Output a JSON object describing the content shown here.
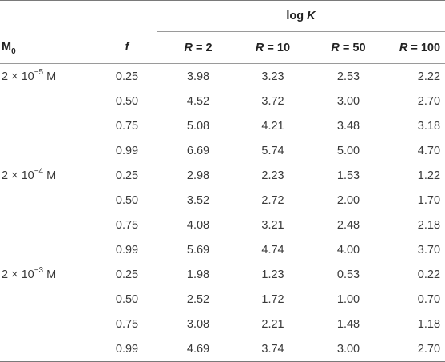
{
  "header": {
    "group_label_prefix": "log ",
    "group_label_var": "K",
    "m_label_base": "M",
    "m_label_sub": "0",
    "f_label": "f",
    "r_var": "R",
    "r_columns": [
      " = 2",
      " = 10",
      " = 50",
      " = 100"
    ]
  },
  "rows": [
    {
      "m_base": "2 × 10",
      "m_exp": "−5",
      "m_unit": " M",
      "f": "0.25",
      "v": [
        "3.98",
        "3.23",
        "2.53",
        "2.22"
      ]
    },
    {
      "m_base": "",
      "m_exp": "",
      "m_unit": "",
      "f": "0.50",
      "v": [
        "4.52",
        "3.72",
        "3.00",
        "2.70"
      ]
    },
    {
      "m_base": "",
      "m_exp": "",
      "m_unit": "",
      "f": "0.75",
      "v": [
        "5.08",
        "4.21",
        "3.48",
        "3.18"
      ]
    },
    {
      "m_base": "",
      "m_exp": "",
      "m_unit": "",
      "f": "0.99",
      "v": [
        "6.69",
        "5.74",
        "5.00",
        "4.70"
      ]
    },
    {
      "m_base": "2 × 10",
      "m_exp": "−4",
      "m_unit": " M",
      "f": "0.25",
      "v": [
        "2.98",
        "2.23",
        "1.53",
        "1.22"
      ]
    },
    {
      "m_base": "",
      "m_exp": "",
      "m_unit": "",
      "f": "0.50",
      "v": [
        "3.52",
        "2.72",
        "2.00",
        "1.70"
      ]
    },
    {
      "m_base": "",
      "m_exp": "",
      "m_unit": "",
      "f": "0.75",
      "v": [
        "4.08",
        "3.21",
        "2.48",
        "2.18"
      ]
    },
    {
      "m_base": "",
      "m_exp": "",
      "m_unit": "",
      "f": "0.99",
      "v": [
        "5.69",
        "4.74",
        "4.00",
        "3.70"
      ]
    },
    {
      "m_base": "2 × 10",
      "m_exp": "−3",
      "m_unit": " M",
      "f": "0.25",
      "v": [
        "1.98",
        "1.23",
        "0.53",
        "0.22"
      ]
    },
    {
      "m_base": "",
      "m_exp": "",
      "m_unit": "",
      "f": "0.50",
      "v": [
        "2.52",
        "1.72",
        "1.00",
        "0.70"
      ]
    },
    {
      "m_base": "",
      "m_exp": "",
      "m_unit": "",
      "f": "0.75",
      "v": [
        "3.08",
        "2.21",
        "1.48",
        "1.18"
      ]
    },
    {
      "m_base": "",
      "m_exp": "",
      "m_unit": "",
      "f": "0.99",
      "v": [
        "4.69",
        "3.74",
        "3.00",
        "2.70"
      ]
    }
  ]
}
